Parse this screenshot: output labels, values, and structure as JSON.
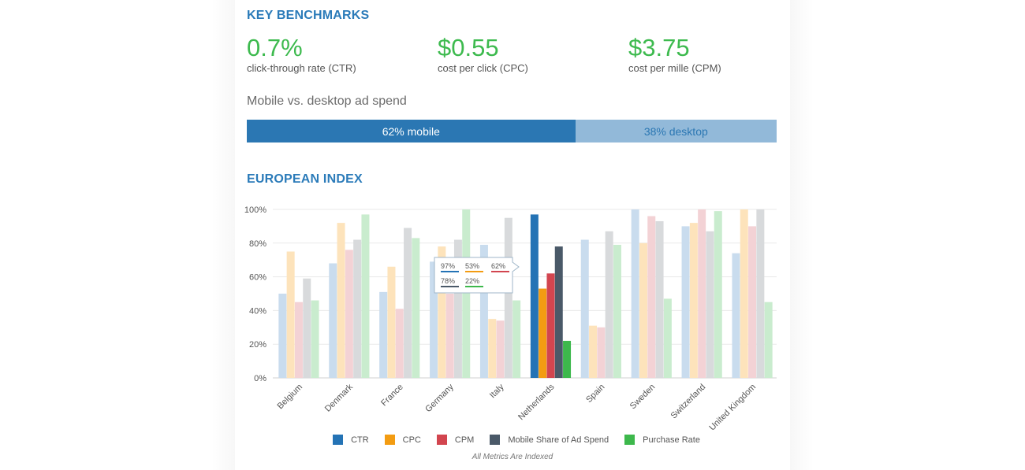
{
  "benchmarks": {
    "title": "KEY BENCHMARKS",
    "metrics": [
      {
        "value": "0.7%",
        "label": "click-through rate (CTR)"
      },
      {
        "value": "$0.55",
        "label": "cost per click (CPC)"
      },
      {
        "value": "$3.75",
        "label": "cost per mille (CPM)"
      }
    ]
  },
  "spend": {
    "title": "Mobile vs. desktop ad spend",
    "mobile_label": "62% mobile",
    "desktop_label": "38% desktop",
    "mobile_share": 0.62
  },
  "index": {
    "title": "EUROPEAN INDEX",
    "note": "All Metrics Are Indexed"
  },
  "colors": {
    "accent": "#2b7bb9",
    "metric_green": "#3dba4e",
    "mobile_bar": "#2b77b3",
    "desktop_bar": "#92b9d9"
  },
  "chart_data": {
    "type": "bar",
    "categories": [
      "Belgium",
      "Denmark",
      "France",
      "Germany",
      "Italy",
      "Netherlands",
      "Spain",
      "Sweden",
      "Switzerland",
      "United Kingdom"
    ],
    "series": [
      {
        "name": "CTR",
        "color": "#2473b5",
        "faded": "#c9dcee",
        "values": [
          50,
          68,
          51,
          69,
          79,
          97,
          82,
          100,
          90,
          74
        ]
      },
      {
        "name": "CPC",
        "color": "#f39c12",
        "faded": "#fde3bb",
        "values": [
          75,
          92,
          66,
          78,
          35,
          53,
          31,
          80,
          92,
          100
        ]
      },
      {
        "name": "CPM",
        "color": "#d2454f",
        "faded": "#f3d2d5",
        "values": [
          45,
          76,
          41,
          50,
          34,
          62,
          30,
          96,
          100,
          90
        ]
      },
      {
        "name": "Mobile Share of Ad Spend",
        "color": "#4a5968",
        "faded": "#d8dadc",
        "values": [
          59,
          82,
          89,
          82,
          95,
          78,
          87,
          93,
          87,
          100
        ]
      },
      {
        "name": "Purchase Rate",
        "color": "#3db84c",
        "faded": "#c9ecce",
        "values": [
          46,
          97,
          83,
          100,
          46,
          22,
          79,
          47,
          99,
          45
        ]
      }
    ],
    "highlight": "Netherlands",
    "tooltip": [
      "97%",
      "53%",
      "62%",
      "78%",
      "22%"
    ],
    "ylim": [
      0,
      100
    ],
    "y_ticks": [
      "0%",
      "20%",
      "40%",
      "60%",
      "80%",
      "100%"
    ],
    "grid": true,
    "legend": "bottom"
  }
}
